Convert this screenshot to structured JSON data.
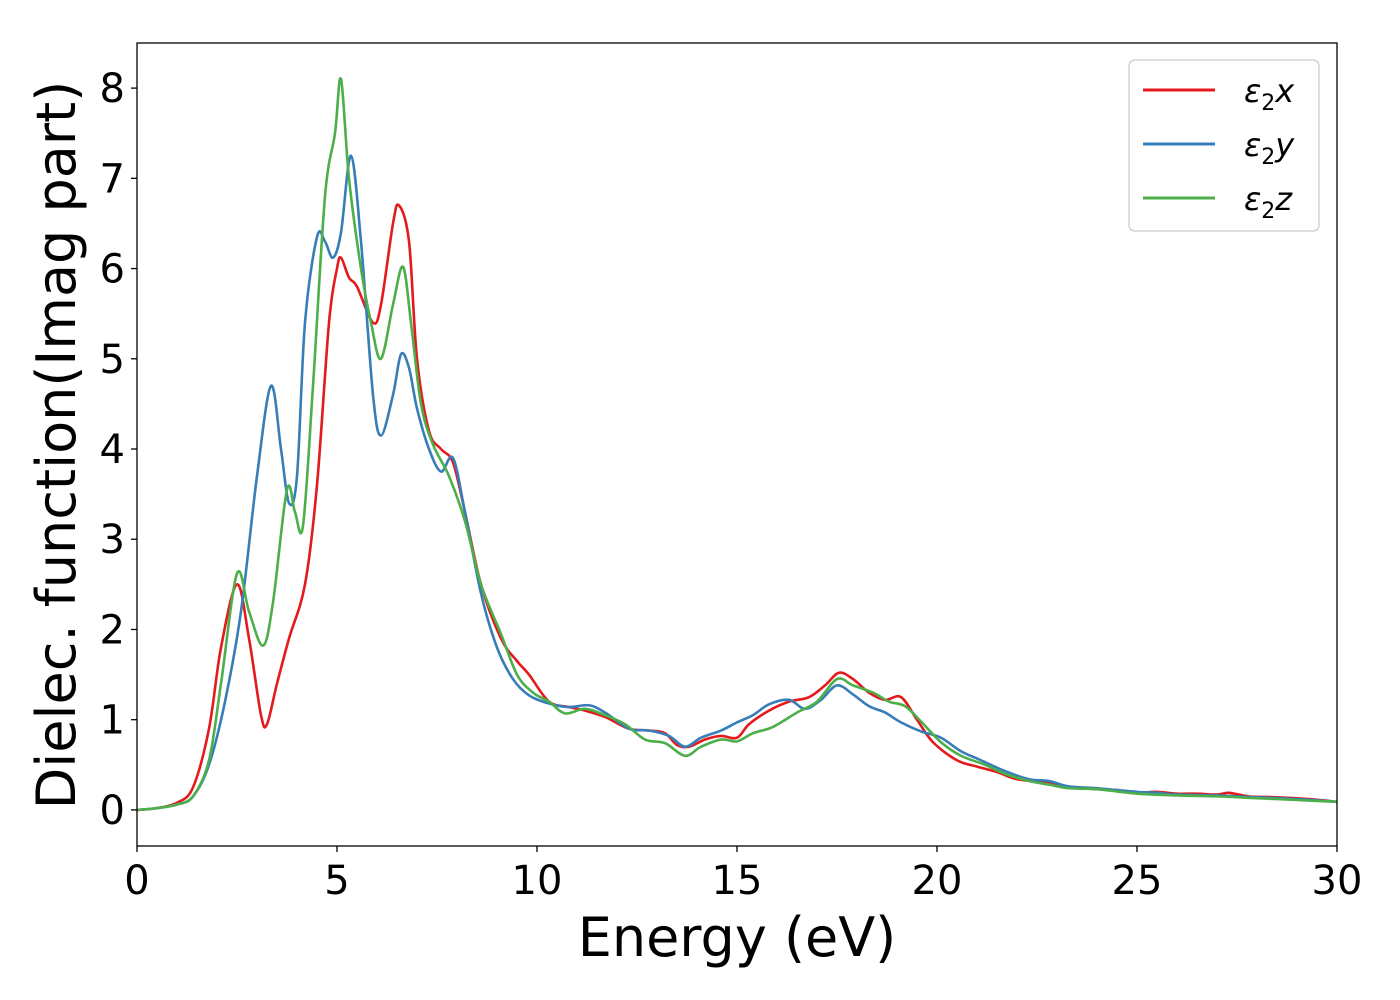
{
  "chart_data": {
    "type": "line",
    "xlabel": "Energy (eV)",
    "ylabel": "Dielec. function(Imag part)",
    "xlim": [
      0,
      30
    ],
    "ylim": [
      -0.4,
      8.5
    ],
    "x_ticks": [
      0,
      5,
      10,
      15,
      20,
      25,
      30
    ],
    "y_ticks": [
      0,
      1,
      2,
      3,
      4,
      5,
      6,
      7,
      8
    ],
    "grid": false,
    "legend_position": "top-right",
    "series": [
      {
        "name": "ε₂x",
        "legend_main": "ε",
        "legend_sub": "2",
        "legend_suffix": "x",
        "color": "#e41a1c",
        "points": [
          [
            0,
            0
          ],
          [
            0.5,
            0.02
          ],
          [
            1,
            0.08
          ],
          [
            1.4,
            0.25
          ],
          [
            1.8,
            0.9
          ],
          [
            2.1,
            1.8
          ],
          [
            2.5,
            2.5
          ],
          [
            2.8,
            1.9
          ],
          [
            3.1,
            1.05
          ],
          [
            3.25,
            0.95
          ],
          [
            3.5,
            1.4
          ],
          [
            3.8,
            1.9
          ],
          [
            4.2,
            2.5
          ],
          [
            4.5,
            3.6
          ],
          [
            4.8,
            5.4
          ],
          [
            5.0,
            6.0
          ],
          [
            5.1,
            6.12
          ],
          [
            5.3,
            5.9
          ],
          [
            5.5,
            5.8
          ],
          [
            5.9,
            5.4
          ],
          [
            6.1,
            5.6
          ],
          [
            6.4,
            6.5
          ],
          [
            6.55,
            6.7
          ],
          [
            6.8,
            6.3
          ],
          [
            7.0,
            5.0
          ],
          [
            7.3,
            4.2
          ],
          [
            7.6,
            4.0
          ],
          [
            7.9,
            3.85
          ],
          [
            8.2,
            3.3
          ],
          [
            8.6,
            2.5
          ],
          [
            9.1,
            1.9
          ],
          [
            9.5,
            1.65
          ],
          [
            9.8,
            1.5
          ],
          [
            10.3,
            1.2
          ],
          [
            10.8,
            1.14
          ],
          [
            11.2,
            1.1
          ],
          [
            11.7,
            1.03
          ],
          [
            12.3,
            0.9
          ],
          [
            12.8,
            0.88
          ],
          [
            13.2,
            0.85
          ],
          [
            13.5,
            0.72
          ],
          [
            13.8,
            0.7
          ],
          [
            14.2,
            0.78
          ],
          [
            14.6,
            0.82
          ],
          [
            15.0,
            0.8
          ],
          [
            15.3,
            0.95
          ],
          [
            15.8,
            1.1
          ],
          [
            16.3,
            1.2
          ],
          [
            16.8,
            1.25
          ],
          [
            17.2,
            1.38
          ],
          [
            17.55,
            1.52
          ],
          [
            17.9,
            1.45
          ],
          [
            18.3,
            1.3
          ],
          [
            18.7,
            1.22
          ],
          [
            19.1,
            1.25
          ],
          [
            19.5,
            1.0
          ],
          [
            19.9,
            0.75
          ],
          [
            20.5,
            0.55
          ],
          [
            21.0,
            0.48
          ],
          [
            21.5,
            0.42
          ],
          [
            22.0,
            0.34
          ],
          [
            22.8,
            0.3
          ],
          [
            23.3,
            0.25
          ],
          [
            24.0,
            0.23
          ],
          [
            24.5,
            0.22
          ],
          [
            25.0,
            0.19
          ],
          [
            25.5,
            0.2
          ],
          [
            26.0,
            0.18
          ],
          [
            26.5,
            0.18
          ],
          [
            27.0,
            0.17
          ],
          [
            27.3,
            0.19
          ],
          [
            27.8,
            0.15
          ],
          [
            28.5,
            0.14
          ],
          [
            29.3,
            0.12
          ],
          [
            30,
            0.09
          ]
        ]
      },
      {
        "name": "ε₂y",
        "legend_main": "ε",
        "legend_sub": "2",
        "legend_suffix": "y",
        "color": "#377eb8",
        "points": [
          [
            0,
            0
          ],
          [
            0.5,
            0.02
          ],
          [
            1,
            0.06
          ],
          [
            1.4,
            0.15
          ],
          [
            1.8,
            0.5
          ],
          [
            2.2,
            1.2
          ],
          [
            2.6,
            2.2
          ],
          [
            3.0,
            3.7
          ],
          [
            3.35,
            4.7
          ],
          [
            3.6,
            4.0
          ],
          [
            3.8,
            3.4
          ],
          [
            4.0,
            3.7
          ],
          [
            4.2,
            5.4
          ],
          [
            4.5,
            6.35
          ],
          [
            4.7,
            6.3
          ],
          [
            4.9,
            6.12
          ],
          [
            5.1,
            6.4
          ],
          [
            5.35,
            7.25
          ],
          [
            5.6,
            6.3
          ],
          [
            5.9,
            4.6
          ],
          [
            6.1,
            4.15
          ],
          [
            6.4,
            4.6
          ],
          [
            6.6,
            5.05
          ],
          [
            6.8,
            4.9
          ],
          [
            7.0,
            4.45
          ],
          [
            7.3,
            4.0
          ],
          [
            7.6,
            3.75
          ],
          [
            7.9,
            3.9
          ],
          [
            8.2,
            3.3
          ],
          [
            8.6,
            2.4
          ],
          [
            9.0,
            1.8
          ],
          [
            9.4,
            1.45
          ],
          [
            9.8,
            1.27
          ],
          [
            10.3,
            1.18
          ],
          [
            10.8,
            1.14
          ],
          [
            11.3,
            1.16
          ],
          [
            11.7,
            1.08
          ],
          [
            12.3,
            0.9
          ],
          [
            12.8,
            0.88
          ],
          [
            13.3,
            0.82
          ],
          [
            13.7,
            0.7
          ],
          [
            14.1,
            0.8
          ],
          [
            14.6,
            0.88
          ],
          [
            15.0,
            0.97
          ],
          [
            15.4,
            1.05
          ],
          [
            15.8,
            1.17
          ],
          [
            16.3,
            1.22
          ],
          [
            16.7,
            1.12
          ],
          [
            17.1,
            1.22
          ],
          [
            17.5,
            1.38
          ],
          [
            17.9,
            1.28
          ],
          [
            18.3,
            1.15
          ],
          [
            18.7,
            1.08
          ],
          [
            19.1,
            0.97
          ],
          [
            19.6,
            0.87
          ],
          [
            20.1,
            0.8
          ],
          [
            20.6,
            0.65
          ],
          [
            21.1,
            0.55
          ],
          [
            21.7,
            0.43
          ],
          [
            22.3,
            0.34
          ],
          [
            22.8,
            0.32
          ],
          [
            23.3,
            0.26
          ],
          [
            24.0,
            0.24
          ],
          [
            25.0,
            0.2
          ],
          [
            25.5,
            0.19
          ],
          [
            26.0,
            0.17
          ],
          [
            27.0,
            0.16
          ],
          [
            28.0,
            0.14
          ],
          [
            29.0,
            0.12
          ],
          [
            30,
            0.09
          ]
        ]
      },
      {
        "name": "ε₂z",
        "legend_main": "ε",
        "legend_sub": "2",
        "legend_suffix": "z",
        "color": "#4daf4a",
        "points": [
          [
            0,
            0
          ],
          [
            0.5,
            0.02
          ],
          [
            1,
            0.06
          ],
          [
            1.4,
            0.15
          ],
          [
            1.8,
            0.55
          ],
          [
            2.1,
            1.4
          ],
          [
            2.5,
            2.62
          ],
          [
            2.8,
            2.2
          ],
          [
            3.15,
            1.82
          ],
          [
            3.4,
            2.3
          ],
          [
            3.75,
            3.55
          ],
          [
            3.95,
            3.3
          ],
          [
            4.15,
            3.15
          ],
          [
            4.4,
            4.7
          ],
          [
            4.7,
            6.8
          ],
          [
            4.95,
            7.5
          ],
          [
            5.1,
            8.1
          ],
          [
            5.3,
            7.0
          ],
          [
            5.6,
            6.0
          ],
          [
            5.85,
            5.4
          ],
          [
            6.1,
            5.0
          ],
          [
            6.4,
            5.6
          ],
          [
            6.65,
            6.02
          ],
          [
            6.85,
            5.4
          ],
          [
            7.1,
            4.5
          ],
          [
            7.4,
            4.05
          ],
          [
            7.8,
            3.7
          ],
          [
            8.2,
            3.2
          ],
          [
            8.6,
            2.5
          ],
          [
            9.1,
            1.95
          ],
          [
            9.5,
            1.5
          ],
          [
            9.9,
            1.3
          ],
          [
            10.3,
            1.2
          ],
          [
            10.7,
            1.07
          ],
          [
            11.2,
            1.12
          ],
          [
            11.7,
            1.05
          ],
          [
            12.2,
            0.95
          ],
          [
            12.7,
            0.78
          ],
          [
            13.2,
            0.74
          ],
          [
            13.7,
            0.6
          ],
          [
            14.1,
            0.7
          ],
          [
            14.6,
            0.78
          ],
          [
            15.0,
            0.76
          ],
          [
            15.4,
            0.85
          ],
          [
            15.9,
            0.92
          ],
          [
            16.5,
            1.08
          ],
          [
            17.0,
            1.2
          ],
          [
            17.5,
            1.45
          ],
          [
            17.9,
            1.38
          ],
          [
            18.4,
            1.3
          ],
          [
            18.8,
            1.2
          ],
          [
            19.2,
            1.15
          ],
          [
            19.6,
            0.98
          ],
          [
            20.1,
            0.75
          ],
          [
            20.6,
            0.6
          ],
          [
            21.2,
            0.5
          ],
          [
            21.7,
            0.4
          ],
          [
            22.3,
            0.32
          ],
          [
            22.8,
            0.28
          ],
          [
            23.3,
            0.24
          ],
          [
            24.0,
            0.23
          ],
          [
            25.0,
            0.18
          ],
          [
            26.0,
            0.16
          ],
          [
            27.0,
            0.15
          ],
          [
            28.0,
            0.13
          ],
          [
            29.0,
            0.11
          ],
          [
            30,
            0.09
          ]
        ]
      }
    ]
  }
}
